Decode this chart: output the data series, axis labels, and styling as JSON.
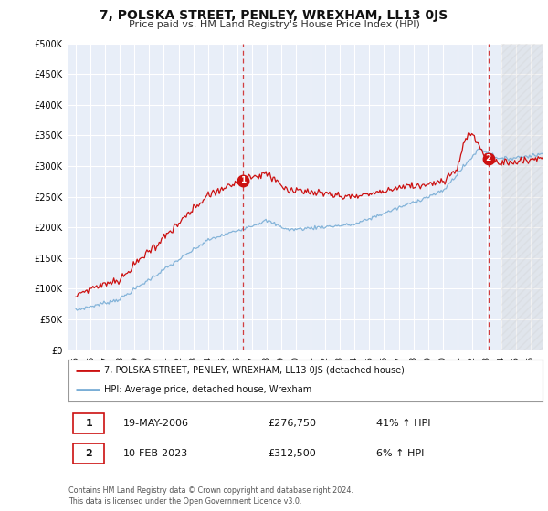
{
  "title": "7, POLSKA STREET, PENLEY, WREXHAM, LL13 0JS",
  "subtitle": "Price paid vs. HM Land Registry's House Price Index (HPI)",
  "title_fontsize": 10,
  "subtitle_fontsize": 8,
  "ylim": [
    0,
    500000
  ],
  "yticks": [
    0,
    50000,
    100000,
    150000,
    200000,
    250000,
    300000,
    350000,
    400000,
    450000,
    500000
  ],
  "background_color": "#ffffff",
  "plot_bg_color": "#e8eef8",
  "grid_color": "#ffffff",
  "hpi_line_color": "#7aaed6",
  "price_line_color": "#cc1111",
  "sale1_date": "19-MAY-2006",
  "sale1_price": 276750,
  "sale1_hpi_pct": "41%",
  "sale2_date": "10-FEB-2023",
  "sale2_price": 312500,
  "sale2_hpi_pct": "6%",
  "legend_label1": "7, POLSKA STREET, PENLEY, WREXHAM, LL13 0JS (detached house)",
  "legend_label2": "HPI: Average price, detached house, Wrexham",
  "footer": "Contains HM Land Registry data © Crown copyright and database right 2024.\nThis data is licensed under the Open Government Licence v3.0.",
  "marker1_x": 2006.38,
  "marker1_y": 276750,
  "marker2_x": 2023.11,
  "marker2_y": 312500,
  "hatch_start": 2024.0,
  "xlim_left": 1994.5,
  "xlim_right": 2026.8
}
